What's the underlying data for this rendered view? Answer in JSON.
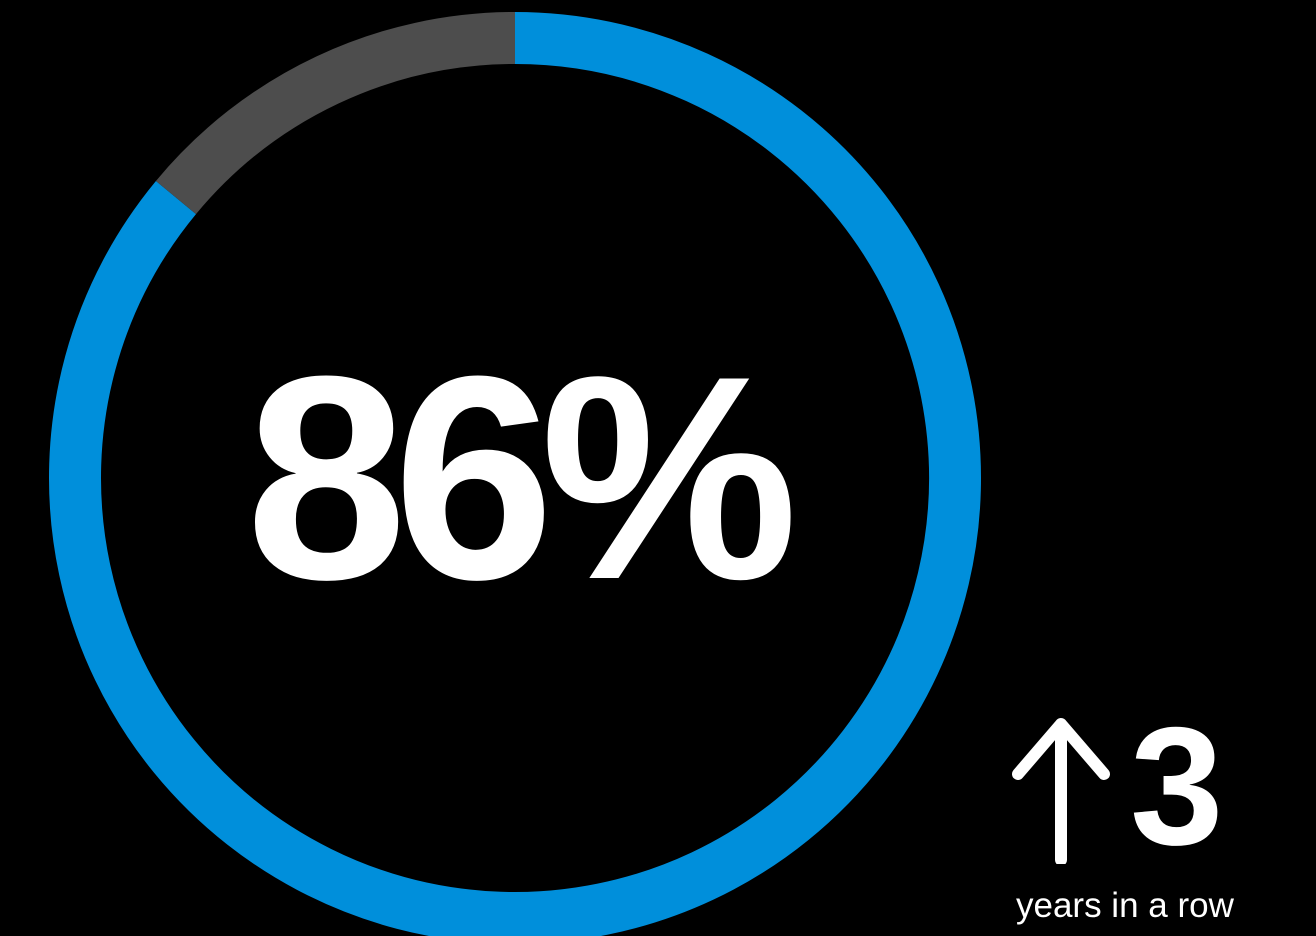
{
  "chart_data": {
    "type": "pie",
    "variant": "donut",
    "value_percent": 86,
    "segments": [
      {
        "label": "",
        "value": 86,
        "color": "#008fdb"
      },
      {
        "label": "",
        "value": 14,
        "color": "#4d4d4d"
      }
    ],
    "center_label": "86%",
    "title": ""
  },
  "streak": {
    "icon": "arrow-up-icon",
    "value": "3",
    "caption": "years in a row"
  },
  "colors": {
    "background": "#000000",
    "accent": "#008fdb",
    "remainder": "#4d4d4d",
    "text": "#ffffff"
  }
}
